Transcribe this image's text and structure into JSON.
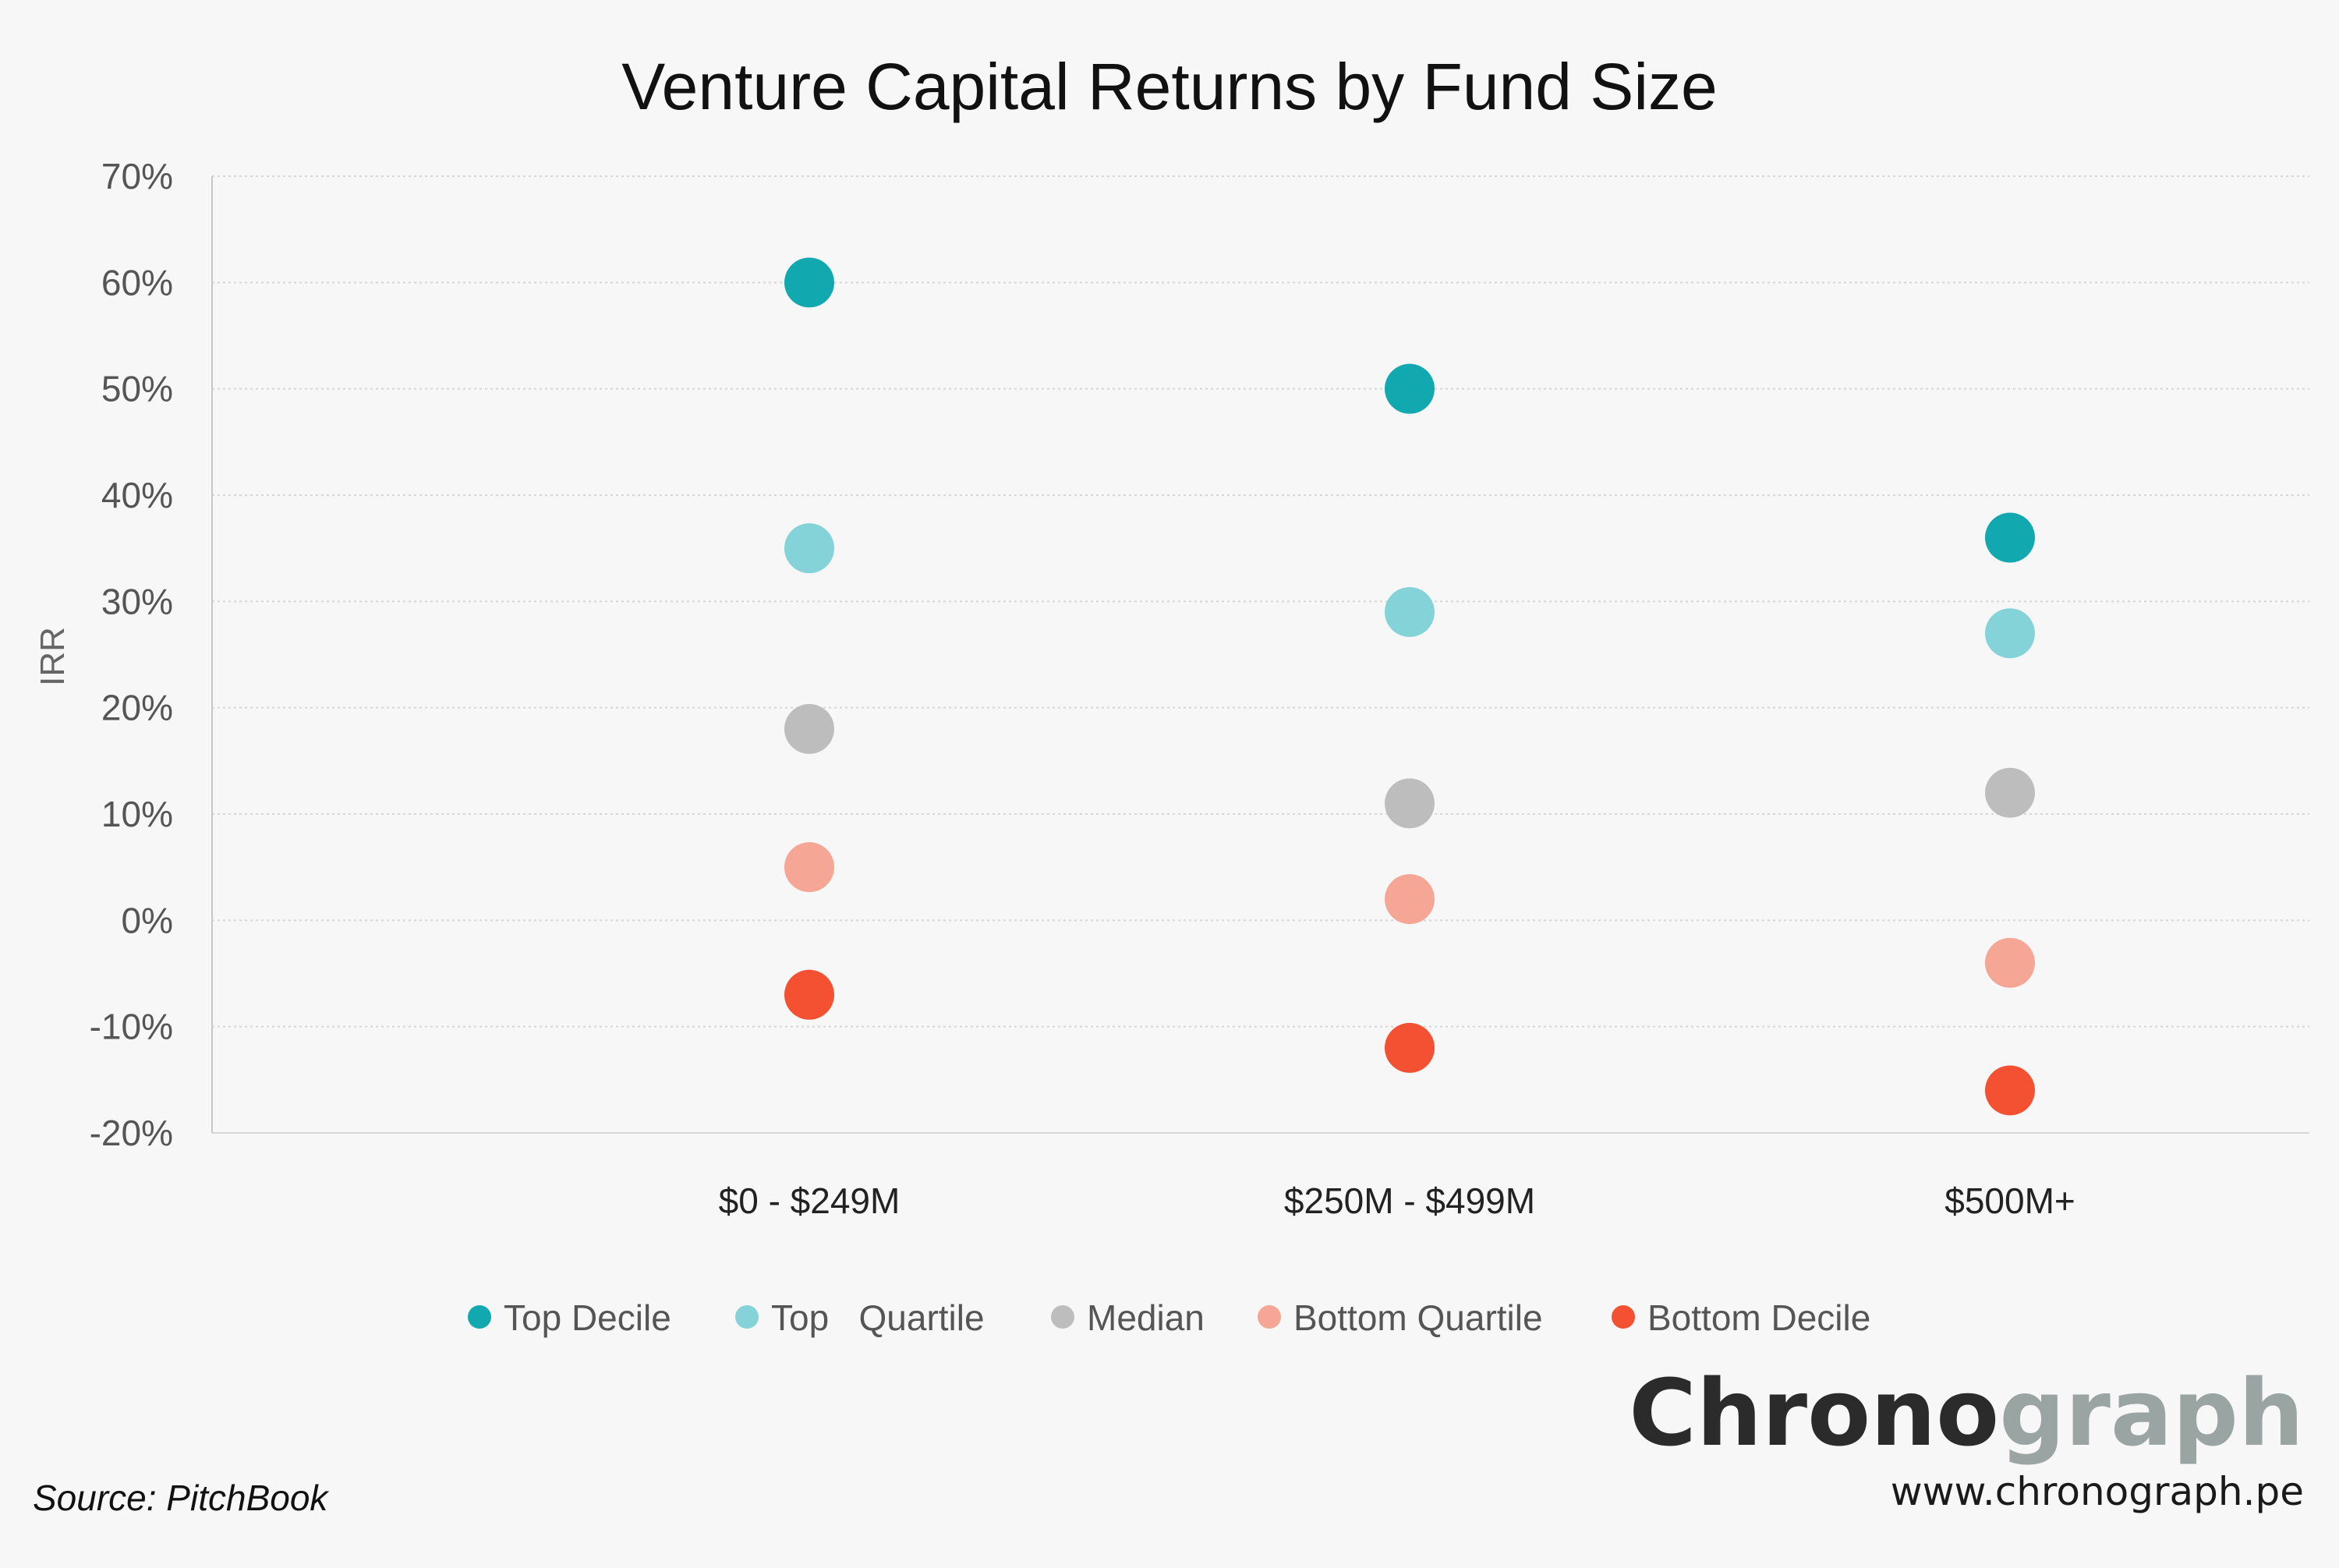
{
  "chart_data": {
    "type": "scatter",
    "title": "Venture Capital Returns by Fund Size",
    "ylabel": "IRR",
    "xlabel": "",
    "categories": [
      "$0 - $249M",
      "$250M - $499M",
      "$500M+"
    ],
    "ylim": [
      -20,
      70
    ],
    "yticks": [
      -20,
      -10,
      0,
      10,
      20,
      30,
      40,
      50,
      60,
      70
    ],
    "ytick_labels": [
      "-20%",
      "-10%",
      "0%",
      "10%",
      "20%",
      "30%",
      "40%",
      "50%",
      "60%",
      "70%"
    ],
    "grid": true,
    "legend_position": "bottom",
    "series": [
      {
        "name": "Top Decile",
        "color": "#12a8b0",
        "values": [
          60,
          50,
          36
        ]
      },
      {
        "name": "Top   Quartile",
        "color": "#84d3d8",
        "values": [
          35,
          29,
          27
        ]
      },
      {
        "name": "Median",
        "color": "#bdbdbd",
        "values": [
          18,
          11,
          12
        ]
      },
      {
        "name": "Bottom Quartile",
        "color": "#f5a694",
        "values": [
          5,
          2,
          -4
        ]
      },
      {
        "name": "Bottom Decile",
        "color": "#f45133",
        "values": [
          -7,
          -12,
          -16
        ]
      }
    ]
  },
  "source": "Source: PitchBook",
  "brand": {
    "logo_part1": "Chrono",
    "logo_part2": "graph",
    "logo_color1": "#2b2b2b",
    "logo_color2": "#9aa5a3",
    "url": "www.chronograph.pe"
  }
}
